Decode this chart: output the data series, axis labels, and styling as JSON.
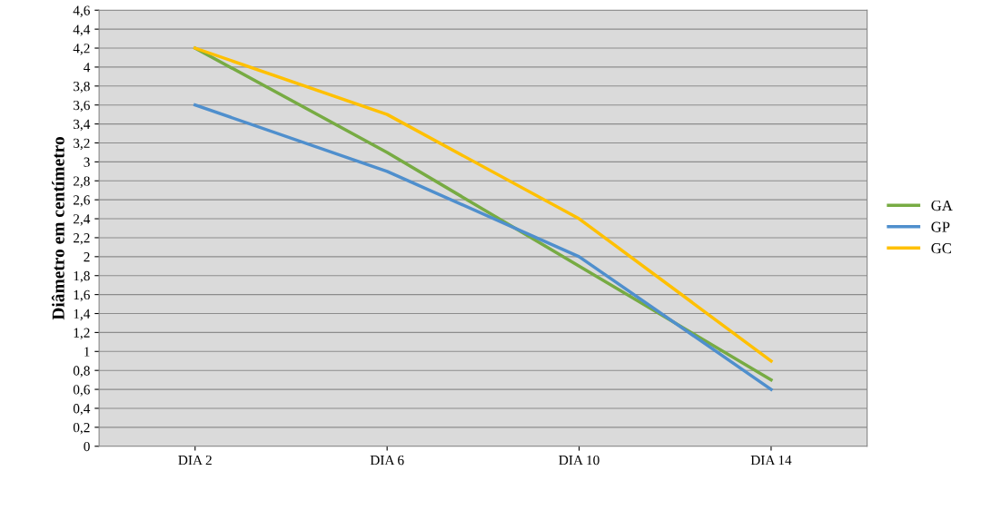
{
  "chart_data": {
    "type": "line",
    "ylabel": "Diâmetro em centímetro",
    "categories": [
      "DIA 2",
      "DIA 6",
      "DIA 10",
      "DIA 14"
    ],
    "series": [
      {
        "name": "GA",
        "color": "#77ab43",
        "values": [
          4.2,
          3.1,
          1.9,
          0.7
        ]
      },
      {
        "name": "GP",
        "color": "#4f8fcd",
        "values": [
          3.6,
          2.9,
          2.0,
          0.6
        ]
      },
      {
        "name": "GC",
        "color": "#ffc000",
        "values": [
          4.2,
          3.5,
          2.4,
          0.9
        ]
      }
    ],
    "ylim": [
      0,
      4.6
    ],
    "yticks": [
      0,
      {
        "value": 0.2,
        "label": "0,2"
      },
      {
        "value": 0.4,
        "label": "0,4"
      },
      {
        "value": 0.6,
        "label": "0,6"
      },
      {
        "value": 0.8,
        "label": "0,8"
      },
      1,
      {
        "value": 1.2,
        "label": "1,2"
      },
      {
        "value": 1.4,
        "label": "1,4"
      },
      {
        "value": 1.6,
        "label": "1,6"
      },
      {
        "value": 1.8,
        "label": "1,8"
      },
      2,
      {
        "value": 2.2,
        "label": "2,2"
      },
      {
        "value": 2.4,
        "label": "2,4"
      },
      {
        "value": 2.6,
        "label": "2,6"
      },
      {
        "value": 2.8,
        "label": "2,8"
      },
      3,
      {
        "value": 3.2,
        "label": "3,2"
      },
      {
        "value": 3.4,
        "label": "3,4"
      },
      {
        "value": 3.6,
        "label": "3,6"
      },
      {
        "value": 3.8,
        "label": "3,8"
      },
      4,
      {
        "value": 4.2,
        "label": "4,2"
      },
      {
        "value": 4.4,
        "label": "4,4"
      },
      {
        "value": 4.6,
        "label": "4,6"
      }
    ],
    "grid": "y",
    "legend": "right"
  }
}
